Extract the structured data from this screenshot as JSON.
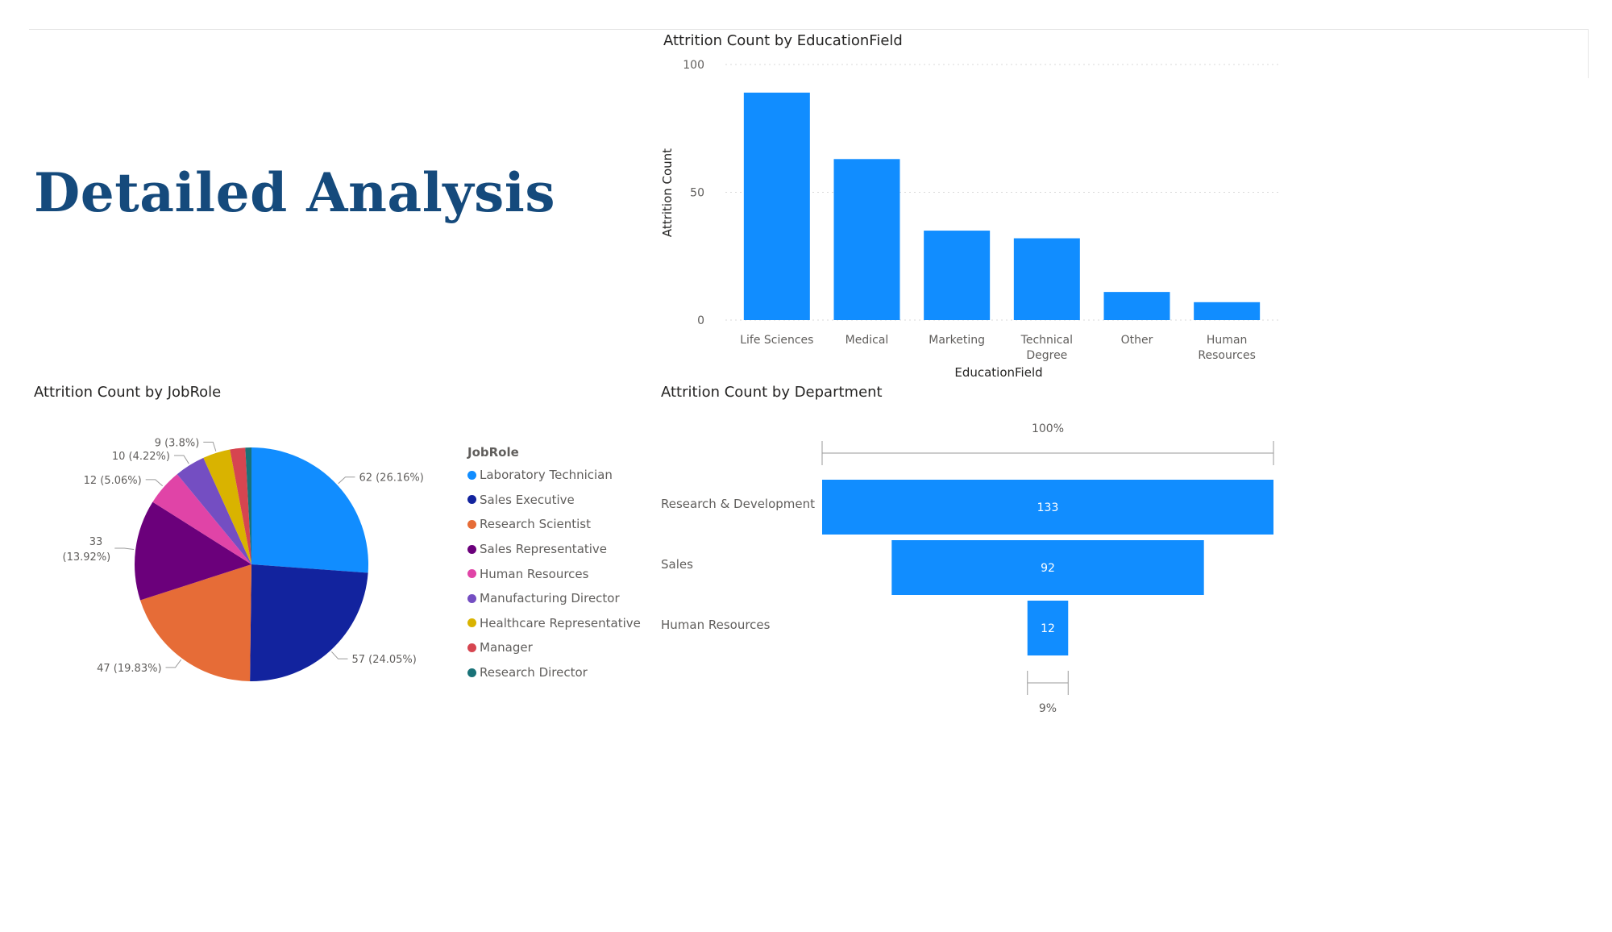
{
  "report": {
    "title": "Detailed Analysis"
  },
  "chart_data": [
    {
      "type": "bar",
      "title": "Attrition Count by EducationField",
      "xlabel": "EducationField",
      "ylabel": "Attrition Count",
      "ylim": [
        0,
        100
      ],
      "yticks": [
        "0",
        "50",
        "100"
      ],
      "grid": true,
      "color": "#118dff",
      "categories": [
        "Life Sciences",
        "Medical",
        "Marketing",
        "Technical Degree",
        "Other",
        "Human Resources"
      ],
      "category_lines": [
        [
          "Life Sciences"
        ],
        [
          "Medical"
        ],
        [
          "Marketing"
        ],
        [
          "Technical",
          "Degree"
        ],
        [
          "Other"
        ],
        [
          "Human",
          "Resources"
        ]
      ],
      "values": [
        89,
        63,
        35,
        32,
        11,
        7
      ]
    },
    {
      "type": "pie",
      "title": "Attrition Count by JobRole",
      "legend_title": "JobRole",
      "legend_position": "right",
      "slices": [
        {
          "name": "Laboratory Technician",
          "value": 62,
          "label": "62 (26.16%)",
          "color": "#118dff"
        },
        {
          "name": "Sales Executive",
          "value": 57,
          "label": "57 (24.05%)",
          "color": "#12239e"
        },
        {
          "name": "Research Scientist",
          "value": 47,
          "label": "47 (19.83%)",
          "color": "#e66c37"
        },
        {
          "name": "Sales Representative",
          "value": 33,
          "label": "33 (13.92%)",
          "label_lines": [
            "33",
            "(13.92%)"
          ],
          "color": "#6b007b"
        },
        {
          "name": "Human Resources",
          "value": 12,
          "label": "12 (5.06%)",
          "color": "#e044a7"
        },
        {
          "name": "Manufacturing Director",
          "value": 10,
          "label": "10 (4.22%)",
          "color": "#744ec2"
        },
        {
          "name": "Healthcare Representative",
          "value": 9,
          "label": "9 (3.8%)",
          "color": "#d9b300"
        },
        {
          "name": "Manager",
          "value": 5,
          "label": "",
          "color": "#d64550"
        },
        {
          "name": "Research Director",
          "value": 2,
          "label": "",
          "color": "#197278"
        }
      ]
    },
    {
      "type": "funnel",
      "title": "Attrition Count by Department",
      "top_percent": "100%",
      "bottom_percent": "9%",
      "color": "#118dff",
      "categories": [
        "Research & Development",
        "Sales",
        "Human Resources"
      ],
      "values": [
        133,
        92,
        12
      ]
    }
  ]
}
